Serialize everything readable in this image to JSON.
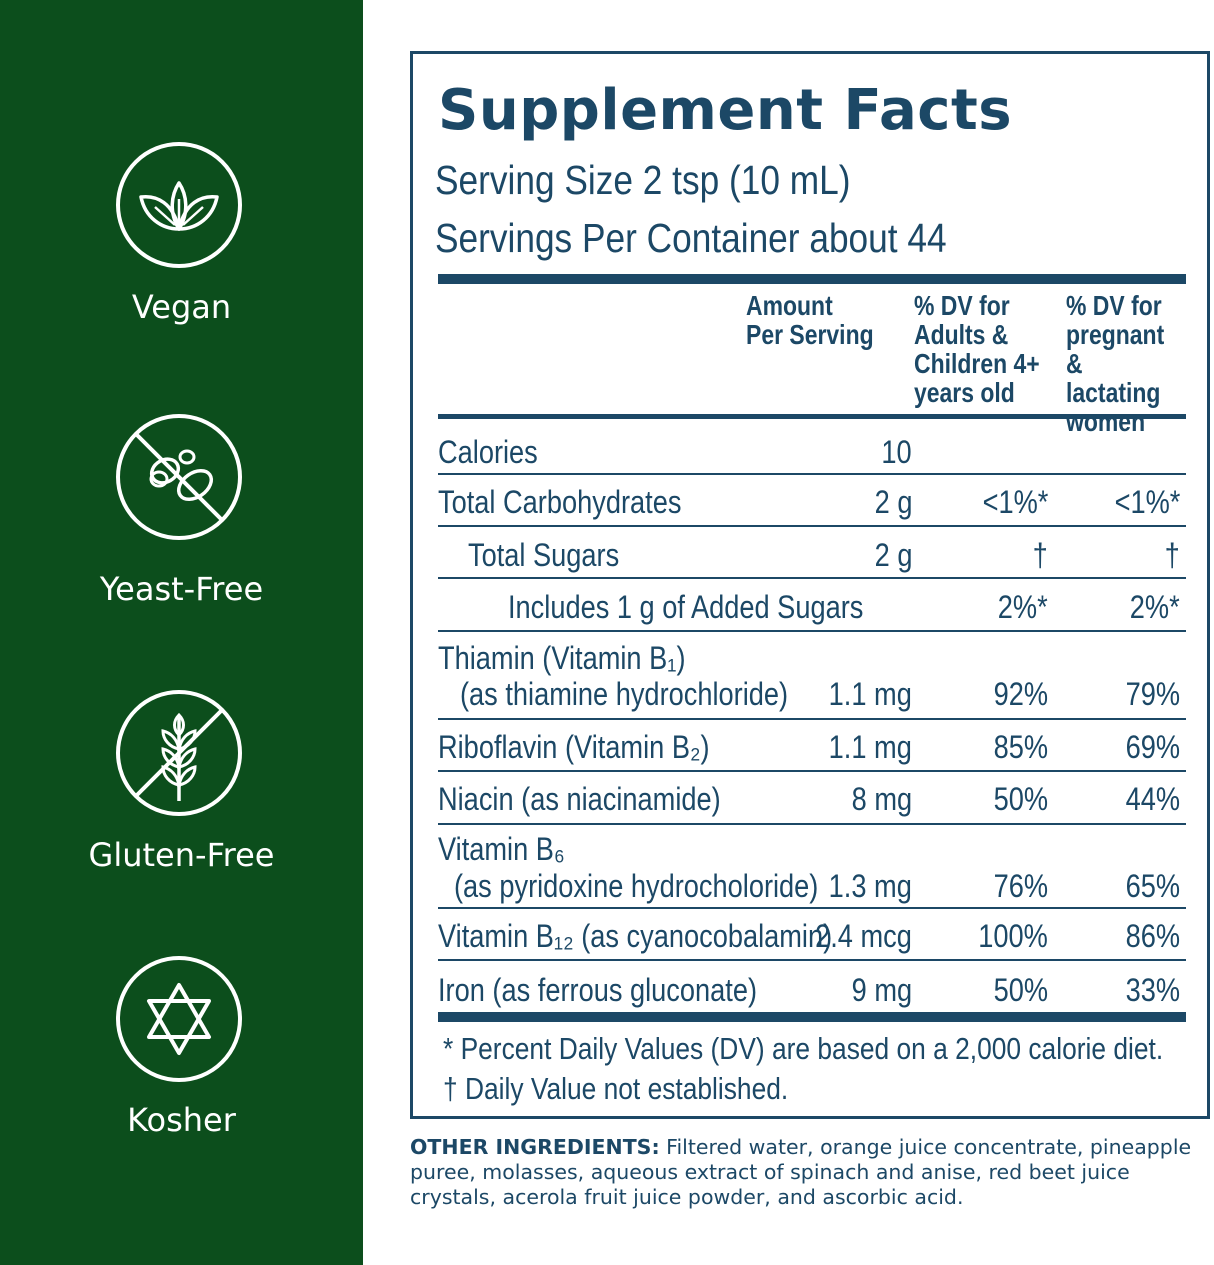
{
  "badges": [
    {
      "label": "Vegan",
      "icon": "leaf-icon"
    },
    {
      "label": "Yeast-Free",
      "icon": "no-yeast-icon"
    },
    {
      "label": "Gluten-Free",
      "icon": "no-wheat-icon"
    },
    {
      "label": "Kosher",
      "icon": "star-of-david-icon"
    }
  ],
  "facts": {
    "title": "Supplement Facts",
    "serving_size": "Serving Size 2 tsp (10 mL)",
    "servings_per_container": "Servings Per Container about 44",
    "headers": {
      "amount": "Amount\nPer Serving",
      "dv_adults": "% DV for\nAdults &\nChildren 4+\nyears old",
      "dv_pregnant": "% DV for\npregnant\n& lactating\nwomen"
    },
    "rows": [
      {
        "name": "Calories",
        "amount": "10",
        "dv1": "",
        "dv2": ""
      },
      {
        "name": "Total Carbohydrates",
        "amount": "2 g",
        "dv1": "<1%*",
        "dv2": "<1%*"
      },
      {
        "name": "Total Sugars",
        "amount": "2 g",
        "dv1": "†",
        "dv2": "†"
      },
      {
        "name": "Includes 1 g of Added Sugars",
        "amount": "",
        "dv1": "2%*",
        "dv2": "2%*"
      },
      {
        "name": "Thiamin (Vitamin B₁)",
        "sub": "(as thiamine hydrochloride)",
        "amount": "1.1 mg",
        "dv1": "92%",
        "dv2": "79%"
      },
      {
        "name": "Riboflavin (Vitamin B₂)",
        "amount": "1.1 mg",
        "dv1": "85%",
        "dv2": "69%"
      },
      {
        "name": "Niacin (as niacinamide)",
        "amount": "8 mg",
        "dv1": "50%",
        "dv2": "44%"
      },
      {
        "name": "Vitamin B₆",
        "sub": "(as pyridoxine hydrocholoride)",
        "amount": "1.3 mg",
        "dv1": "76%",
        "dv2": "65%"
      },
      {
        "name": "Vitamin B₁₂ (as cyanocobalamin)",
        "amount": "2.4 mcg",
        "dv1": "100%",
        "dv2": "86%"
      },
      {
        "name": "Iron (as ferrous gluconate)",
        "amount": "9 mg",
        "dv1": "50%",
        "dv2": "33%"
      }
    ],
    "footnote_1": "* Percent Daily Values (DV) are based on a 2,000 calorie diet.",
    "footnote_2": "† Daily Value not established."
  },
  "ingredients": {
    "label": "OTHER INGREDIENTS:",
    "text": " Filtered water, orange juice concentrate, pineapple puree, molasses, aqueous extract of spinach and anise, red beet juice crystals, acerola fruit juice powder, and ascorbic acid."
  },
  "colors": {
    "sidebar": "#0c4e1c",
    "text": "#1c4866",
    "badge": "#ffffff"
  }
}
